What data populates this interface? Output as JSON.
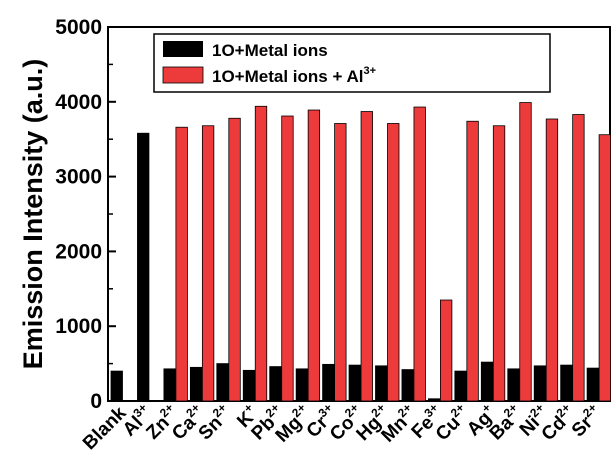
{
  "chart_data": {
    "type": "bar",
    "ylabel": "Emission Intensity (a.u.)",
    "ylim": [
      0,
      5000
    ],
    "yticks": [
      "0",
      "1000",
      "2000",
      "3000",
      "4000",
      "5000"
    ],
    "grid": false,
    "legend_position": "top-right",
    "categories": [
      {
        "base": "Blank",
        "sup": ""
      },
      {
        "base": "Al",
        "sup": "3+"
      },
      {
        "base": "Zn",
        "sup": "2+"
      },
      {
        "base": "Ca",
        "sup": "2+"
      },
      {
        "base": "Sn",
        "sup": "2+"
      },
      {
        "base": "K",
        "sup": "+"
      },
      {
        "base": "Pb",
        "sup": "2+"
      },
      {
        "base": "Mg",
        "sup": "2+"
      },
      {
        "base": "Cr",
        "sup": "3+"
      },
      {
        "base": "Co",
        "sup": "2+"
      },
      {
        "base": "Hg",
        "sup": "2+"
      },
      {
        "base": "Mn",
        "sup": "2+"
      },
      {
        "base": "Fe",
        "sup": "3+"
      },
      {
        "base": "Cu",
        "sup": "2+"
      },
      {
        "base": "Ag",
        "sup": "+"
      },
      {
        "base": "Ba",
        "sup": "2+"
      },
      {
        "base": "Ni",
        "sup": "2+"
      },
      {
        "base": "Cd",
        "sup": "2+"
      },
      {
        "base": "Sr",
        "sup": "2+"
      }
    ],
    "series": [
      {
        "name": "1O+Metal ions",
        "color": "#000000",
        "values": [
          400,
          3580,
          430,
          450,
          500,
          410,
          460,
          430,
          490,
          480,
          470,
          420,
          30,
          400,
          520,
          430,
          470,
          480,
          440
        ]
      },
      {
        "name": "1O+Metal ions + Al",
        "name_sup": "3+",
        "color": "#ed3b3b",
        "values": [
          null,
          null,
          3660,
          3680,
          3780,
          3940,
          3810,
          3890,
          3710,
          3870,
          3710,
          3930,
          1350,
          3740,
          3680,
          3990,
          3770,
          3830,
          3560
        ]
      }
    ]
  }
}
